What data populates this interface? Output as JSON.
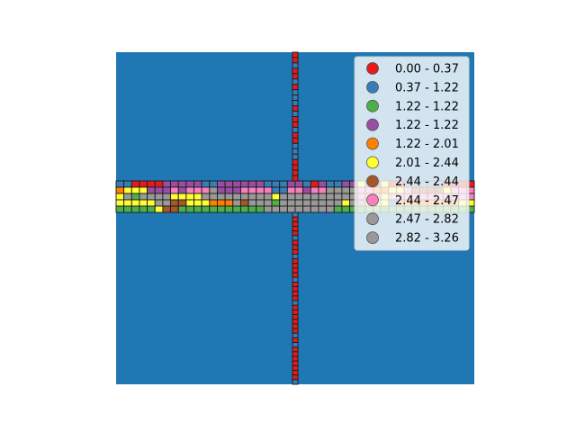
{
  "chart_data": {
    "type": "heatmap",
    "description_free": true,
    "background_color": "#1f77b4",
    "grid": false,
    "legend_position": "upper right",
    "legend": [
      {
        "label": "0.00 - 0.37",
        "color": "#e41a1c"
      },
      {
        "label": "0.37 - 1.22",
        "color": "#377eb8"
      },
      {
        "label": "1.22 - 1.22",
        "color": "#4daf4a"
      },
      {
        "label": "1.22 - 1.22",
        "color": "#984ea3"
      },
      {
        "label": "1.22 - 2.01",
        "color": "#ff7f00"
      },
      {
        "label": "2.01 - 2.44",
        "color": "#ffff33"
      },
      {
        "label": "2.44 - 2.44",
        "color": "#a65628"
      },
      {
        "label": "2.44 - 2.47",
        "color": "#f781bf"
      },
      {
        "label": "2.47 - 2.82",
        "color": "#999999"
      },
      {
        "label": "2.82 - 3.26",
        "color": "#999999"
      }
    ],
    "horizontal_band": {
      "rows": [
        "1100003333311333333111331031133533500111110000",
        "4555333737778333777711773778888774455766665777",
        "5828888555588888888858888888888777577777777777",
        "5555588665554448688828888888858855514444444455",
        "2222256622222222222888888888222222222222222222"
      ]
    },
    "vertical_band": {
      "upper": "001001011101001001110000",
      "lower": "1000010001000010000100000010100000001"
    }
  }
}
